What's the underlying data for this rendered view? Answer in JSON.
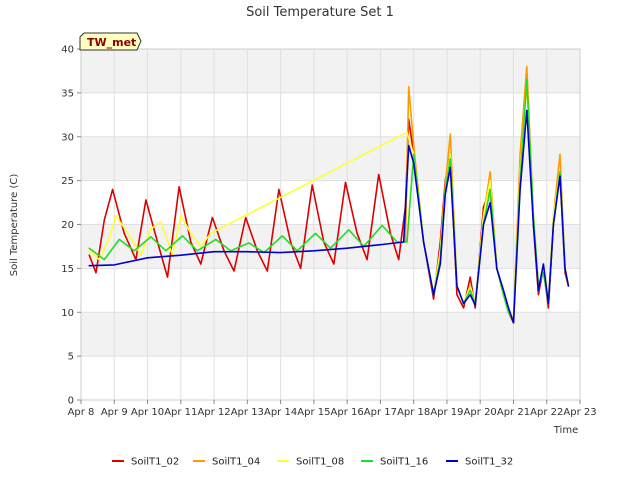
{
  "chart_data": {
    "type": "line",
    "title": "Soil Temperature Set 1",
    "xlabel": "Time",
    "ylabel": "Soil Temperature (C)",
    "badge": "TW_met",
    "x_ticks": [
      "Apr 8",
      "Apr 9",
      "Apr 10",
      "Apr 11",
      "Apr 12",
      "Apr 13",
      "Apr 14",
      "Apr 15",
      "Apr 16",
      "Apr 17",
      "Apr 18",
      "Apr 19",
      "Apr 20",
      "Apr 21",
      "Apr 22",
      "Apr 23"
    ],
    "x_unit": "day offset from Apr 8",
    "xlim": [
      0,
      15
    ],
    "ylim": [
      0,
      40
    ],
    "y_ticks": [
      0,
      5,
      10,
      15,
      20,
      25,
      30,
      35,
      40
    ],
    "grid": true,
    "legend_position": "bottom",
    "colors": {
      "SoilT1_02": "#dd0000",
      "SoilT1_04": "#ff9900",
      "SoilT1_08": "#ffff33",
      "SoilT1_16": "#22dd22",
      "SoilT1_32": "#0000cc"
    },
    "series": [
      {
        "name": "SoilT1_02",
        "x": [
          0.25,
          0.45,
          0.7,
          0.95,
          1.3,
          1.65,
          1.95,
          2.3,
          2.6,
          2.95,
          3.3,
          3.6,
          3.95,
          4.3,
          4.6,
          4.95,
          5.3,
          5.6,
          5.95,
          6.3,
          6.6,
          6.95,
          7.3,
          7.6,
          7.95,
          8.3,
          8.6,
          8.95,
          9.3,
          9.55,
          9.75,
          9.85,
          10.0,
          10.3,
          10.6,
          10.8,
          10.95,
          11.1,
          11.3,
          11.5,
          11.7,
          11.85,
          12.1,
          12.3,
          12.5,
          12.7,
          12.85,
          13.0,
          13.2,
          13.4,
          13.6,
          13.75,
          13.9,
          14.05,
          14.2,
          14.4,
          14.55,
          14.65
        ],
        "y": [
          16.5,
          14.5,
          20.5,
          24.0,
          19.0,
          16.0,
          22.8,
          18.0,
          14.0,
          24.3,
          18.0,
          15.5,
          20.8,
          17.0,
          14.7,
          20.8,
          17.0,
          14.7,
          24.0,
          18.0,
          15.0,
          24.5,
          18.0,
          15.5,
          24.8,
          19.0,
          16.0,
          25.7,
          19.0,
          16.0,
          22.0,
          32.0,
          28.0,
          18.0,
          11.5,
          18.0,
          25.0,
          28.0,
          12.0,
          10.5,
          14.0,
          10.5,
          22.0,
          24.0,
          15.0,
          12.0,
          10.0,
          8.8,
          27.0,
          37.0,
          20.0,
          12.0,
          15.0,
          10.5,
          20.0,
          26.0,
          14.5,
          13.0
        ]
      },
      {
        "name": "SoilT1_04",
        "x": [
          9.75,
          9.85,
          10.0,
          10.3,
          10.6,
          10.8,
          10.95,
          11.1,
          11.3,
          11.5,
          11.7,
          11.85,
          12.1,
          12.3,
          12.5,
          12.7,
          12.85,
          13.0,
          13.2,
          13.4,
          13.6,
          13.75,
          13.9,
          14.05,
          14.2,
          14.4,
          14.55,
          14.65
        ],
        "y": [
          18.0,
          35.7,
          29.0,
          18.0,
          12.0,
          17.0,
          24.5,
          30.3,
          13.0,
          11.0,
          13.0,
          11.0,
          21.0,
          26.0,
          15.0,
          12.0,
          10.0,
          9.2,
          28.0,
          38.0,
          21.0,
          13.0,
          15.0,
          11.0,
          21.0,
          28.0,
          15.0,
          13.0
        ]
      },
      {
        "name": "SoilT1_08",
        "x": [
          0.25,
          0.55,
          0.85,
          1.05,
          1.5,
          1.8,
          2.1,
          2.4,
          2.75,
          3.0,
          3.3,
          3.6,
          3.9,
          9.8,
          10.0,
          10.3,
          10.6,
          10.8,
          10.95,
          11.1,
          11.3,
          11.5,
          11.7,
          11.85,
          12.1,
          12.3,
          12.5,
          12.7,
          12.85,
          13.0,
          13.2,
          13.4,
          13.6,
          13.75,
          13.9,
          14.05,
          14.2,
          14.4,
          14.55,
          14.65
        ],
        "y": [
          17.0,
          16.0,
          18.5,
          21.0,
          18.5,
          16.5,
          19.5,
          20.3,
          16.5,
          21.0,
          19.0,
          17.5,
          19.0,
          30.5,
          28.0,
          18.0,
          12.0,
          17.0,
          24.0,
          28.0,
          13.0,
          11.0,
          13.0,
          11.0,
          21.0,
          25.0,
          15.0,
          12.0,
          10.0,
          9.0,
          26.0,
          36.0,
          21.0,
          13.0,
          15.0,
          11.0,
          21.0,
          26.0,
          15.0,
          13.0
        ]
      },
      {
        "name": "SoilT1_16",
        "x": [
          0.25,
          0.7,
          1.15,
          1.6,
          2.1,
          2.55,
          3.05,
          3.5,
          4.05,
          4.5,
          5.05,
          5.5,
          6.05,
          6.5,
          7.05,
          7.5,
          8.05,
          8.5,
          9.05,
          9.5,
          9.8,
          10.0,
          10.3,
          10.6,
          10.8,
          10.95,
          11.1,
          11.3,
          11.5,
          11.7,
          11.85,
          12.1,
          12.3,
          12.5,
          12.7,
          12.85,
          13.0,
          13.2,
          13.4,
          13.6,
          13.75,
          13.9,
          14.05,
          14.2,
          14.4,
          14.55,
          14.65
        ],
        "y": [
          17.3,
          16.0,
          18.3,
          17.0,
          18.6,
          17.0,
          18.7,
          17.0,
          18.3,
          17.0,
          17.9,
          16.8,
          18.7,
          17.0,
          19.0,
          17.3,
          19.4,
          17.5,
          19.9,
          18.0,
          18.0,
          28.0,
          18.0,
          12.0,
          16.0,
          24.0,
          27.5,
          13.0,
          11.0,
          12.5,
          11.0,
          20.0,
          24.0,
          15.0,
          12.0,
          10.0,
          9.0,
          25.0,
          36.5,
          21.0,
          13.0,
          14.5,
          11.0,
          20.0,
          26.0,
          15.0,
          13.0
        ]
      },
      {
        "name": "SoilT1_32",
        "x": [
          0.25,
          1.0,
          2.0,
          3.0,
          4.0,
          5.0,
          6.0,
          7.0,
          8.0,
          9.0,
          9.7,
          9.85,
          10.0,
          10.3,
          10.6,
          10.8,
          10.95,
          11.1,
          11.3,
          11.5,
          11.7,
          11.85,
          12.1,
          12.3,
          12.5,
          12.7,
          12.85,
          13.0,
          13.2,
          13.4,
          13.6,
          13.75,
          13.9,
          14.05,
          14.2,
          14.4,
          14.55,
          14.65
        ],
        "y": [
          15.3,
          15.4,
          16.2,
          16.5,
          16.9,
          16.9,
          16.8,
          17.0,
          17.3,
          17.7,
          18.0,
          29.0,
          27.0,
          18.0,
          12.0,
          15.5,
          23.5,
          26.5,
          13.0,
          11.0,
          12.0,
          10.8,
          20.0,
          22.5,
          15.0,
          12.5,
          10.5,
          8.8,
          24.0,
          33.0,
          20.0,
          12.5,
          15.5,
          11.0,
          20.0,
          25.5,
          15.0,
          13.0
        ]
      }
    ]
  }
}
